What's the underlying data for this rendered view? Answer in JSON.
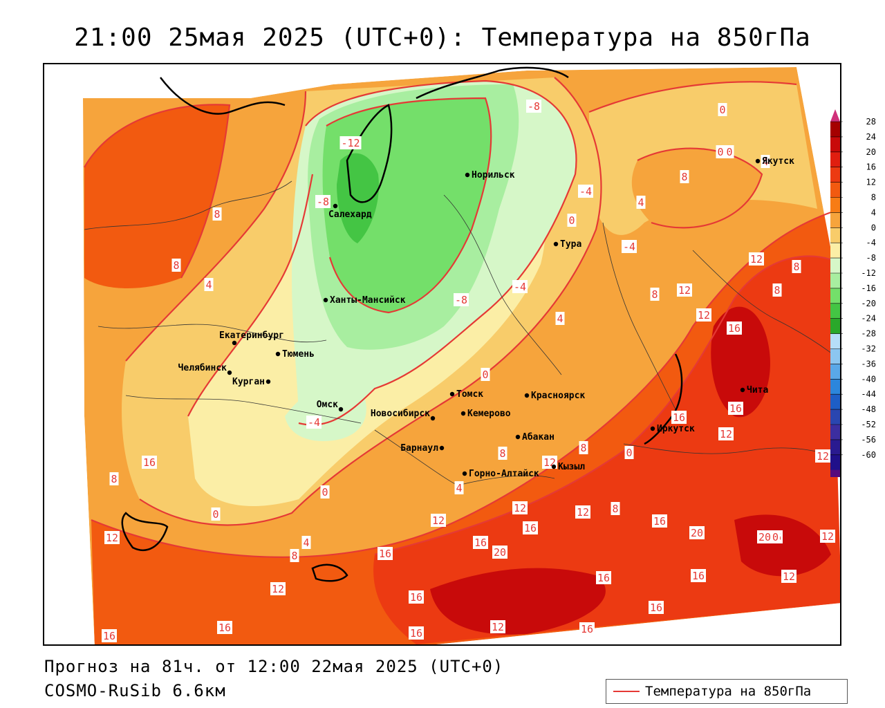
{
  "title": "21:00 25мая 2025 (UTC+0): Температура на 850гПа",
  "footer": {
    "forecast": "Прогноз на 81ч. от 12:00 22мая 2025 (UTC+0)",
    "model": "COSMO-RuSib 6.6км"
  },
  "legend": {
    "label": "Температура на 850гПа",
    "line_color": "#e53935"
  },
  "colorbar": {
    "ticks": [
      "28",
      "24",
      "20",
      "16",
      "12",
      "8",
      "4",
      "0",
      "-4",
      "-8",
      "-12",
      "-16",
      "-20",
      "-24",
      "-28",
      "-32",
      "-36",
      "-40",
      "-44",
      "-48",
      "-52",
      "-56",
      "-60"
    ],
    "colors": [
      "#a50000",
      "#c80a0a",
      "#e01e10",
      "#ec3a12",
      "#f25a10",
      "#f77c15",
      "#f6a43c",
      "#f8cc6a",
      "#fbeea6",
      "#d6f7c8",
      "#a8eea0",
      "#74df6a",
      "#44c544",
      "#2aa82a",
      "#b6def8",
      "#8cc6f0",
      "#5aa8e8",
      "#2c86dc",
      "#1e5ec6",
      "#2a46b0",
      "#3c2ea0",
      "#2a1a90",
      "#20108a",
      "#560a7c"
    ],
    "top_arrow_color": "#d0307a",
    "bottom_arrow_color": "#8a30c8"
  },
  "cities": [
    {
      "name": "Норильск"
    },
    {
      "name": "Салехард"
    },
    {
      "name": "Тура"
    },
    {
      "name": "Якутск"
    },
    {
      "name": "Ханты-Мансийск"
    },
    {
      "name": "Екатеринбург"
    },
    {
      "name": "Тюмень"
    },
    {
      "name": "Челябинск"
    },
    {
      "name": "Курган"
    },
    {
      "name": "Омск"
    },
    {
      "name": "Новосибирск"
    },
    {
      "name": "Томск"
    },
    {
      "name": "Кемерово"
    },
    {
      "name": "Красноярск"
    },
    {
      "name": "Барнаул"
    },
    {
      "name": "Абакан"
    },
    {
      "name": "Горно-Алтайск"
    },
    {
      "name": "Кызыл"
    },
    {
      "name": "Иркутск"
    },
    {
      "name": "Чита"
    }
  ],
  "contour_labels": [
    "-8",
    "-12",
    "-8",
    "8",
    "-4",
    "4",
    "0",
    "-4",
    "-8",
    "-4",
    "4",
    "0",
    "0",
    "8",
    "4",
    "8",
    "8",
    "4",
    "8",
    "12",
    "12",
    "8",
    "12",
    "16",
    "12",
    "12",
    "16",
    "16",
    "8",
    "4",
    "8",
    "12",
    "0",
    "12",
    "12",
    "16",
    "8",
    "12",
    "16",
    "20",
    "16",
    "12",
    "16",
    "20",
    "8",
    "16",
    "12",
    "16",
    "20",
    "16",
    "16",
    "16",
    "12",
    "16",
    "0",
    "0",
    "4",
    "8",
    "12",
    "12",
    "16",
    "16",
    "16",
    "20",
    "16",
    "0",
    "0",
    "-4"
  ]
}
